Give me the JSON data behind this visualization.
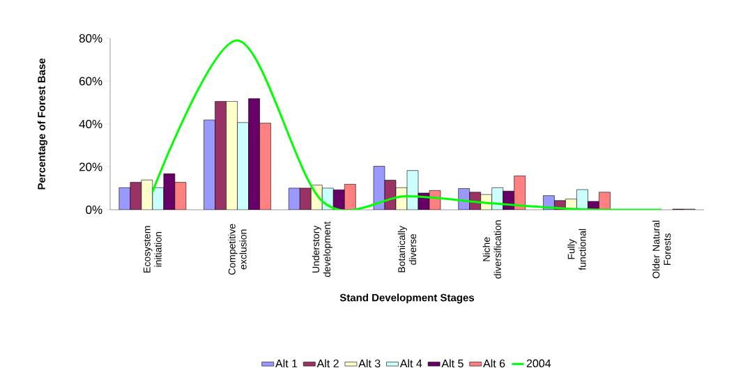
{
  "chart_data": {
    "type": "bar",
    "xlabel": "Stand Development Stages",
    "ylabel": "Percentage of Forest Base",
    "categories": [
      "Ecosystem initiation",
      "Competitive exclusion",
      "Understory development",
      "Botanically diverse",
      "Niche diversification",
      "Fully functional",
      "Older Natural Forests"
    ],
    "series": [
      {
        "name": "Alt 1",
        "color": "#9999ff",
        "values": [
          10.3,
          41.9,
          10.1,
          20.3,
          9.9,
          6.6,
          null
        ]
      },
      {
        "name": "Alt 2",
        "color": "#993366",
        "values": [
          12.8,
          50.6,
          10.1,
          13.8,
          8.2,
          4.3,
          null
        ]
      },
      {
        "name": "Alt 3",
        "color": "#ffffcc",
        "values": [
          13.9,
          50.6,
          11.5,
          10.3,
          7.1,
          5.0,
          null
        ]
      },
      {
        "name": "Alt 4",
        "color": "#ccffff",
        "values": [
          10.3,
          40.7,
          10.1,
          18.3,
          10.3,
          9.4,
          null
        ]
      },
      {
        "name": "Alt 5",
        "color": "#660066",
        "values": [
          16.8,
          51.9,
          9.3,
          7.8,
          8.7,
          3.9,
          0.3
        ]
      },
      {
        "name": "Alt 6",
        "color": "#ff8080",
        "values": [
          12.8,
          40.4,
          11.9,
          9.0,
          15.8,
          8.2,
          0.3
        ]
      },
      {
        "name": "2004",
        "type": "line",
        "color": "#00ff00",
        "marker": "none",
        "line_style": "solid",
        "values": [
          8.4,
          79,
          4,
          6.3,
          3,
          0.3,
          0
        ]
      }
    ],
    "ylim": [
      0,
      80
    ],
    "yticks": [
      {
        "value": 0,
        "label": "0%"
      },
      {
        "value": 20,
        "label": "20%"
      },
      {
        "value": 40,
        "label": "40%"
      },
      {
        "value": 60,
        "label": "60%"
      },
      {
        "value": 80,
        "label": "80%"
      }
    ],
    "grid": false,
    "legend": "bottom"
  }
}
